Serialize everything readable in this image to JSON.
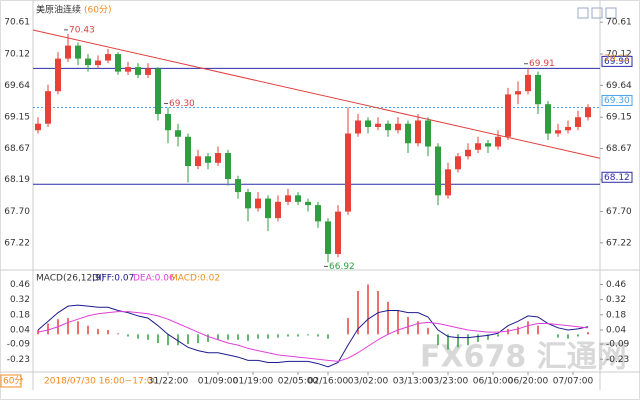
{
  "header": {
    "title": "美原油连续",
    "period": "(60分)"
  },
  "chart_data": [
    {
      "type": "candlestick",
      "candles": [
        [
          68.95,
          69.15,
          68.9,
          69.05
        ],
        [
          69.05,
          69.65,
          69.0,
          69.55
        ],
        [
          69.55,
          70.15,
          69.5,
          70.05
        ],
        [
          70.05,
          70.43,
          70.0,
          70.25
        ],
        [
          70.25,
          70.3,
          69.95,
          70.05
        ],
        [
          70.05,
          70.12,
          69.85,
          69.95
        ],
        [
          69.95,
          70.1,
          69.9,
          70.02
        ],
        [
          70.02,
          70.2,
          69.98,
          70.12
        ],
        [
          70.12,
          70.15,
          69.8,
          69.85
        ],
        [
          69.85,
          70.0,
          69.8,
          69.92
        ],
        [
          69.92,
          69.98,
          69.75,
          69.8
        ],
        [
          69.8,
          69.98,
          69.75,
          69.9
        ],
        [
          69.9,
          69.92,
          69.1,
          69.2
        ],
        [
          69.2,
          69.3,
          68.75,
          68.95
        ],
        [
          68.95,
          69.05,
          68.7,
          68.85
        ],
        [
          68.85,
          68.9,
          68.15,
          68.4
        ],
        [
          68.4,
          68.65,
          68.35,
          68.55
        ],
        [
          68.55,
          68.6,
          68.35,
          68.45
        ],
        [
          68.45,
          68.7,
          68.4,
          68.6
        ],
        [
          68.6,
          68.65,
          68.1,
          68.2
        ],
        [
          68.2,
          68.25,
          67.9,
          68.0
        ],
        [
          68.0,
          68.05,
          67.55,
          67.75
        ],
        [
          67.75,
          68.0,
          67.7,
          67.9
        ],
        [
          67.9,
          67.95,
          67.4,
          67.6
        ],
        [
          67.6,
          67.95,
          67.55,
          67.85
        ],
        [
          67.85,
          68.05,
          67.8,
          67.95
        ],
        [
          67.95,
          68.0,
          67.8,
          67.85
        ],
        [
          67.85,
          67.9,
          67.7,
          67.8
        ],
        [
          67.8,
          67.85,
          67.45,
          67.55
        ],
        [
          67.55,
          67.6,
          66.92,
          67.05
        ],
        [
          67.05,
          67.8,
          67.0,
          67.7
        ],
        [
          67.7,
          69.3,
          67.65,
          68.9
        ],
        [
          68.9,
          69.2,
          68.85,
          69.1
        ],
        [
          69.1,
          69.15,
          68.9,
          69.0
        ],
        [
          69.0,
          69.15,
          68.95,
          69.05
        ],
        [
          69.05,
          69.1,
          68.85,
          68.95
        ],
        [
          68.95,
          69.15,
          68.9,
          69.05
        ],
        [
          69.05,
          69.1,
          68.6,
          68.75
        ],
        [
          68.75,
          69.2,
          68.7,
          69.1
        ],
        [
          69.1,
          69.15,
          68.55,
          68.7
        ],
        [
          68.7,
          68.75,
          67.8,
          67.95
        ],
        [
          67.95,
          68.45,
          67.9,
          68.35
        ],
        [
          68.35,
          68.6,
          68.3,
          68.55
        ],
        [
          68.55,
          68.75,
          68.5,
          68.65
        ],
        [
          68.65,
          68.85,
          68.6,
          68.75
        ],
        [
          68.75,
          68.8,
          68.6,
          68.7
        ],
        [
          68.7,
          68.95,
          68.65,
          68.85
        ],
        [
          68.85,
          69.6,
          68.8,
          69.5
        ],
        [
          69.5,
          69.7,
          69.35,
          69.55
        ],
        [
          69.55,
          69.91,
          69.5,
          69.8
        ],
        [
          69.8,
          69.85,
          69.2,
          69.35
        ],
        [
          69.35,
          69.4,
          68.8,
          68.9
        ],
        [
          68.9,
          69.05,
          68.85,
          68.95
        ],
        [
          68.95,
          69.1,
          68.9,
          69.0
        ],
        [
          69.0,
          69.25,
          68.95,
          69.15
        ],
        [
          69.15,
          69.35,
          69.1,
          69.3
        ]
      ],
      "up_color": "#e8413a",
      "down_color": "#2e9e3e",
      "ylim": [
        66.88,
        70.72
      ],
      "yticks": [
        70.61,
        70.12,
        69.64,
        69.15,
        68.67,
        68.19,
        {
          "value": 67.7,
          "label": "67.70"
        },
        67.22
      ],
      "hlines": [
        {
          "value": 69.9,
          "label": "69.90",
          "color": "#2b2ba8",
          "style": "solid"
        },
        {
          "value": 68.12,
          "label": "68.12",
          "color": "#2b2ba8",
          "style": "solid"
        },
        {
          "value": 69.3,
          "label": "69.30",
          "color": "#4aa3e8",
          "style": "dotted"
        }
      ],
      "price_tag": {
        "value": 70.11,
        "label": "70.11",
        "color": "#f08c1e"
      },
      "trendline": {
        "start": 70.49,
        "end": 68.52,
        "color": "#e04040"
      },
      "extremes": [
        70.43,
        {
          "value": 69.3,
          "label": "69.30"
        },
        69.91,
        66.92
      ]
    },
    {
      "type": "macd",
      "title": "MACD(26,12,9)",
      "series": [
        {
          "label": "DIFF:0.07",
          "color": "#1c1c8e",
          "values": [
            0.04,
            0.12,
            0.2,
            0.26,
            0.27,
            0.26,
            0.25,
            0.25,
            0.22,
            0.2,
            0.17,
            0.15,
            0.08,
            0.0,
            -0.06,
            -0.12,
            -0.15,
            -0.17,
            -0.17,
            -0.19,
            -0.21,
            -0.24,
            -0.24,
            -0.26,
            -0.26,
            -0.25,
            -0.25,
            -0.25,
            -0.27,
            -0.3,
            -0.26,
            -0.1,
            0.05,
            0.14,
            0.2,
            0.22,
            0.22,
            0.2,
            0.2,
            0.16,
            0.04,
            -0.02,
            -0.03,
            -0.03,
            -0.02,
            -0.01,
            0.01,
            0.08,
            0.12,
            0.17,
            0.16,
            0.1,
            0.06,
            0.04,
            0.05,
            0.07
          ]
        },
        {
          "label": "DEA:0.06",
          "color": "#e040d8",
          "values": [
            0.02,
            0.04,
            0.07,
            0.11,
            0.14,
            0.17,
            0.19,
            0.2,
            0.21,
            0.21,
            0.2,
            0.19,
            0.17,
            0.14,
            0.1,
            0.06,
            0.02,
            -0.02,
            -0.05,
            -0.08,
            -0.1,
            -0.13,
            -0.15,
            -0.17,
            -0.19,
            -0.2,
            -0.21,
            -0.22,
            -0.23,
            -0.24,
            -0.25,
            -0.22,
            -0.17,
            -0.11,
            -0.05,
            0.0,
            0.04,
            0.07,
            0.1,
            0.11,
            0.1,
            0.08,
            0.06,
            0.04,
            0.03,
            0.02,
            0.02,
            0.03,
            0.05,
            0.08,
            0.1,
            0.1,
            0.09,
            0.08,
            0.07,
            0.06
          ]
        }
      ],
      "histogram": {
        "label": "MACD:0.02",
        "color": "#f08c1e",
        "up_color": "#e8413a",
        "down_color": "#2e9e3e",
        "values": [
          0.04,
          0.1,
          0.14,
          0.15,
          0.12,
          0.08,
          0.05,
          0.04,
          0.01,
          -0.02,
          -0.04,
          -0.05,
          -0.08,
          -0.1,
          -0.1,
          -0.09,
          -0.08,
          -0.07,
          -0.05,
          -0.05,
          -0.05,
          -0.06,
          -0.04,
          -0.04,
          -0.03,
          -0.02,
          -0.02,
          -0.01,
          -0.02,
          -0.04,
          0.0,
          0.15,
          0.4,
          0.46,
          0.4,
          0.3,
          0.22,
          0.16,
          0.12,
          0.06,
          -0.1,
          -0.14,
          -0.12,
          -0.1,
          -0.07,
          -0.05,
          -0.02,
          0.05,
          0.07,
          0.12,
          0.08,
          0.0,
          -0.03,
          -0.04,
          -0.02,
          0.02
        ]
      },
      "ylim": [
        -0.32,
        0.52
      ],
      "yticks": [
        0.46,
        0.32,
        0.18,
        0.04,
        -0.09,
        -0.23
      ],
      "xticks": [
        {
          "value": 13,
          "label": "31/22:00"
        },
        {
          "value": 18,
          "label": "01/09:00"
        },
        {
          "value": 21.5,
          "label": "01/19:00"
        },
        {
          "value": 26,
          "label": "02/05:00"
        },
        {
          "value": 29,
          "label": "02/16:00"
        },
        {
          "value": 33,
          "label": "03/02:00"
        },
        {
          "value": 37.5,
          "label": "03/13:00"
        },
        {
          "value": 41,
          "label": "03/23:00"
        },
        {
          "value": 45.5,
          "label": "06/10:00"
        },
        {
          "value": 49,
          "label": "06/20:00"
        },
        {
          "value": 53.5,
          "label": "07/07:00"
        }
      ],
      "cursor_label": "2018/07/30 16:00~17:00"
    }
  ],
  "period_badge": "60分",
  "watermark": "FX678 汇通网"
}
